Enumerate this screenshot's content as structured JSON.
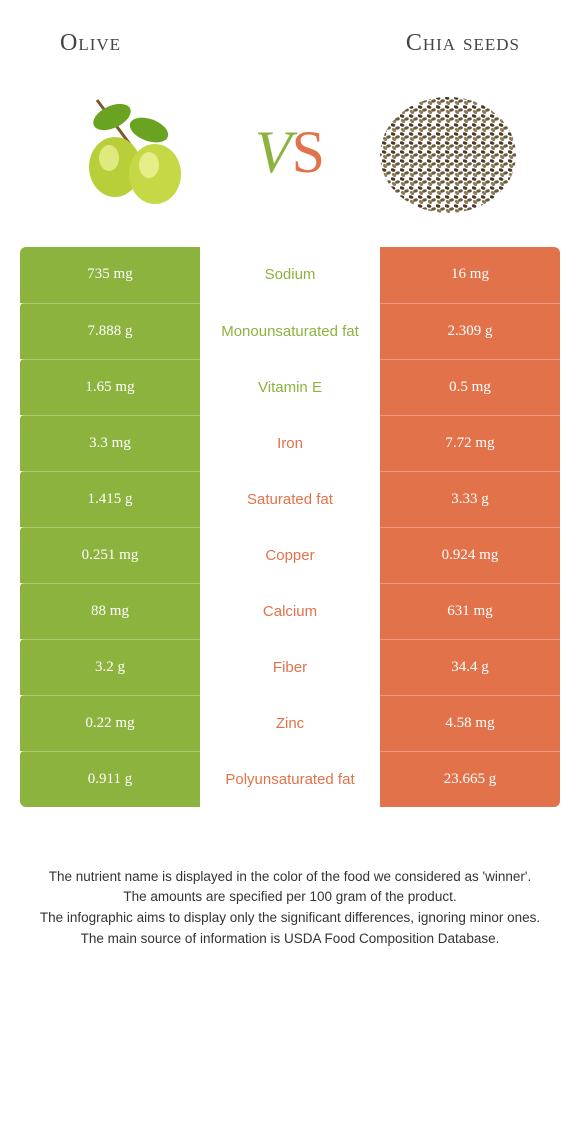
{
  "colors": {
    "olive_green": "#8cb33e",
    "chia_orange": "#e2724a",
    "white": "#ffffff",
    "text": "#333333"
  },
  "header": {
    "left": "Olive",
    "right": "Chia seeds"
  },
  "vs": {
    "v": "V",
    "s": "S"
  },
  "rows": [
    {
      "left": "735 mg",
      "label": "Sodium",
      "right": "16 mg",
      "winner": "left"
    },
    {
      "left": "7.888 g",
      "label": "Monounsaturated fat",
      "right": "2.309 g",
      "winner": "left"
    },
    {
      "left": "1.65 mg",
      "label": "Vitamin E",
      "right": "0.5 mg",
      "winner": "left"
    },
    {
      "left": "3.3 mg",
      "label": "Iron",
      "right": "7.72 mg",
      "winner": "right"
    },
    {
      "left": "1.415 g",
      "label": "Saturated fat",
      "right": "3.33 g",
      "winner": "right"
    },
    {
      "left": "0.251 mg",
      "label": "Copper",
      "right": "0.924 mg",
      "winner": "right"
    },
    {
      "left": "88 mg",
      "label": "Calcium",
      "right": "631 mg",
      "winner": "right"
    },
    {
      "left": "3.2 g",
      "label": "Fiber",
      "right": "34.4 g",
      "winner": "right"
    },
    {
      "left": "0.22 mg",
      "label": "Zinc",
      "right": "4.58 mg",
      "winner": "right"
    },
    {
      "left": "0.911 g",
      "label": "Polyunsaturated fat",
      "right": "23.665 g",
      "winner": "right"
    }
  ],
  "footer": {
    "l1": "The nutrient name is displayed in the color of the food we considered as 'winner'.",
    "l2": "The amounts are specified per 100 gram of the product.",
    "l3": "The infographic aims to display only the significant differences, ignoring minor ones.",
    "l4": "The main source of information is USDA Food Composition Database."
  }
}
